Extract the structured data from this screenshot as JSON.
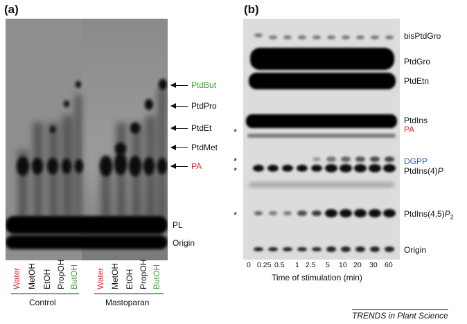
{
  "panel_a": {
    "label": "(a)",
    "band_labels": [
      "PtdBut",
      "PtdPro",
      "PtdEt",
      "PtdMet",
      "PA",
      "PL",
      "Origin"
    ],
    "lane_labels": [
      "Water",
      "MetOH",
      "EtOH",
      "PropOH",
      "ButOH",
      "Water",
      "MetOH",
      "EtOH",
      "PropOH",
      "ButOH"
    ],
    "group_labels": [
      "Control",
      "Mastoparan"
    ]
  },
  "panel_b": {
    "label": "(b)",
    "band_labels": [
      "bisPtdGro",
      "PtdGro",
      "PtdEtn",
      "PtdIns",
      "PA",
      "DGPP",
      "PtdIns(4)",
      "P",
      "PtdIns(4,5)",
      "P",
      "2",
      "Origin"
    ],
    "asterisks": [
      "*",
      "*",
      "*",
      "*"
    ],
    "time_points": [
      "0",
      "0.25",
      "0.5",
      "1",
      "2.5",
      "5",
      "10",
      "20",
      "30",
      "60"
    ],
    "xlabel": "Time of stimulation  (min)"
  },
  "source": "TRENDS in Plant Science",
  "colors": {
    "red": "#e8232a",
    "green": "#3aa935",
    "blue": "#2a5db0",
    "gel_dark": "#0a0a0a",
    "gel_bg": "#bdbdbd"
  }
}
